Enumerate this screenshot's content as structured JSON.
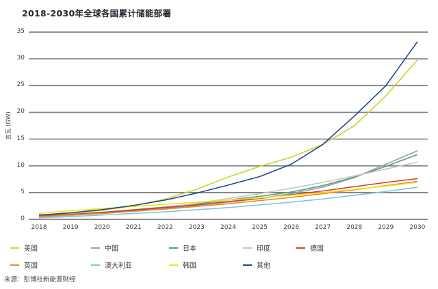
{
  "chart": {
    "title": "2018-2030年全球各国累计储能部署",
    "ylabel": "吉瓦 (GW)",
    "source": "来源：彭博社新能源财经"
  },
  "chart_data": {
    "type": "line",
    "title": "2018-2030年全球各国累计储能部署",
    "xlabel": "",
    "ylabel": "吉瓦 (GW)",
    "x": [
      2018,
      2019,
      2020,
      2021,
      2022,
      2023,
      2024,
      2025,
      2026,
      2027,
      2028,
      2029,
      2030
    ],
    "ylim": [
      0,
      35
    ],
    "yticks": [
      0,
      5,
      10,
      15,
      20,
      25,
      30,
      35
    ],
    "grid": "horizontal",
    "legend_position": "bottom",
    "grid_color": "#7f7f7f",
    "series": [
      {
        "name": "美国",
        "color": "#c5d829",
        "values": [
          0.7,
          1.1,
          1.7,
          2.5,
          3.8,
          5.6,
          7.9,
          9.9,
          11.6,
          14.0,
          17.5,
          23.1,
          29.8
        ]
      },
      {
        "name": "中国",
        "color": "#8f9fc2",
        "values": [
          0.5,
          0.8,
          1.1,
          1.5,
          2.0,
          2.6,
          3.2,
          3.9,
          4.8,
          6.0,
          7.8,
          10.3,
          12.8
        ]
      },
      {
        "name": "日本",
        "color": "#55a45f",
        "values": [
          0.6,
          0.9,
          1.3,
          1.8,
          2.3,
          2.9,
          3.6,
          4.3,
          5.1,
          6.3,
          7.9,
          9.9,
          12.1
        ]
      },
      {
        "name": "印度",
        "color": "#c3c5c8",
        "values": [
          0.4,
          0.7,
          1.1,
          1.6,
          2.2,
          3.0,
          3.9,
          4.8,
          5.8,
          6.9,
          8.1,
          9.4,
          10.7
        ]
      },
      {
        "name": "德国",
        "color": "#d43c32",
        "values": [
          0.6,
          0.9,
          1.3,
          1.7,
          2.2,
          2.7,
          3.3,
          3.9,
          4.6,
          5.3,
          6.1,
          6.9,
          7.6
        ]
      },
      {
        "name": "英国",
        "color": "#ec8b23",
        "values": [
          0.5,
          0.8,
          1.1,
          1.5,
          1.9,
          2.4,
          2.9,
          3.5,
          4.1,
          4.8,
          5.5,
          6.3,
          7.1
        ]
      },
      {
        "name": "澳大利亚",
        "color": "#7cc5e4",
        "values": [
          0.3,
          0.5,
          0.8,
          1.1,
          1.4,
          1.8,
          2.2,
          2.7,
          3.2,
          3.8,
          4.5,
          5.2,
          6.0
        ]
      },
      {
        "name": "韩国",
        "color": "#f2e318",
        "values": [
          1.1,
          1.6,
          2.0,
          2.4,
          2.8,
          3.2,
          3.6,
          4.0,
          4.5,
          5.0,
          5.6,
          6.2,
          6.9
        ]
      },
      {
        "name": "其他",
        "color": "#1c4693",
        "values": [
          0.8,
          1.2,
          1.8,
          2.6,
          3.6,
          4.9,
          6.4,
          8.0,
          10.3,
          14.0,
          19.3,
          25.0,
          33.2
        ]
      }
    ]
  }
}
